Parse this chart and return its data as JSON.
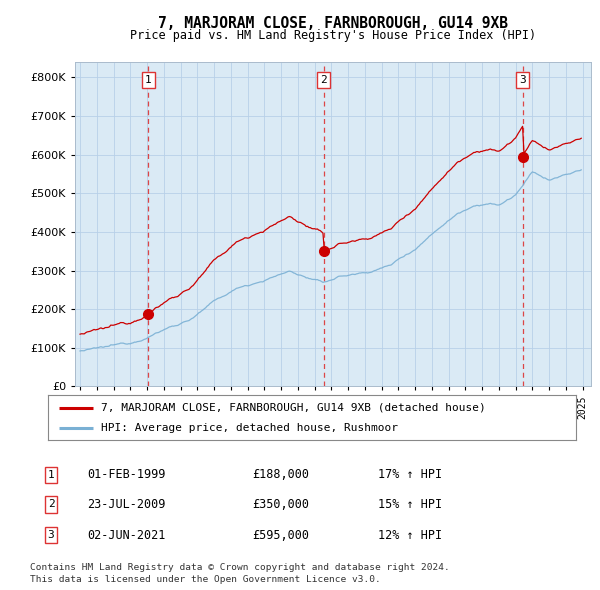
{
  "title": "7, MARJORAM CLOSE, FARNBOROUGH, GU14 9XB",
  "subtitle": "Price paid vs. HM Land Registry's House Price Index (HPI)",
  "legend_property": "7, MARJORAM CLOSE, FARNBOROUGH, GU14 9XB (detached house)",
  "legend_hpi": "HPI: Average price, detached house, Rushmoor",
  "sales": [
    {
      "label": "1",
      "date": "01-FEB-1999",
      "price": 188000,
      "pct": "17%",
      "dir": "↑"
    },
    {
      "label": "2",
      "date": "23-JUL-2009",
      "price": 350000,
      "pct": "15%",
      "dir": "↑"
    },
    {
      "label": "3",
      "date": "02-JUN-2021",
      "price": 595000,
      "pct": "12%",
      "dir": "↑"
    }
  ],
  "sale_years": [
    1999.083,
    2009.542,
    2021.417
  ],
  "sale_prices": [
    188000,
    350000,
    595000
  ],
  "yticks": [
    0,
    100000,
    200000,
    300000,
    400000,
    500000,
    600000,
    700000,
    800000
  ],
  "ylim": [
    0,
    840000
  ],
  "xlim_start": 1994.7,
  "xlim_end": 2025.5,
  "footer1": "Contains HM Land Registry data © Crown copyright and database right 2024.",
  "footer2": "This data is licensed under the Open Government Licence v3.0.",
  "bg_color": "#ffffff",
  "chart_bg": "#daeaf5",
  "grid_color": "#b8d0e8",
  "red_color": "#cc0000",
  "blue_color": "#7ab0d4",
  "dashed_color": "#dd3333"
}
